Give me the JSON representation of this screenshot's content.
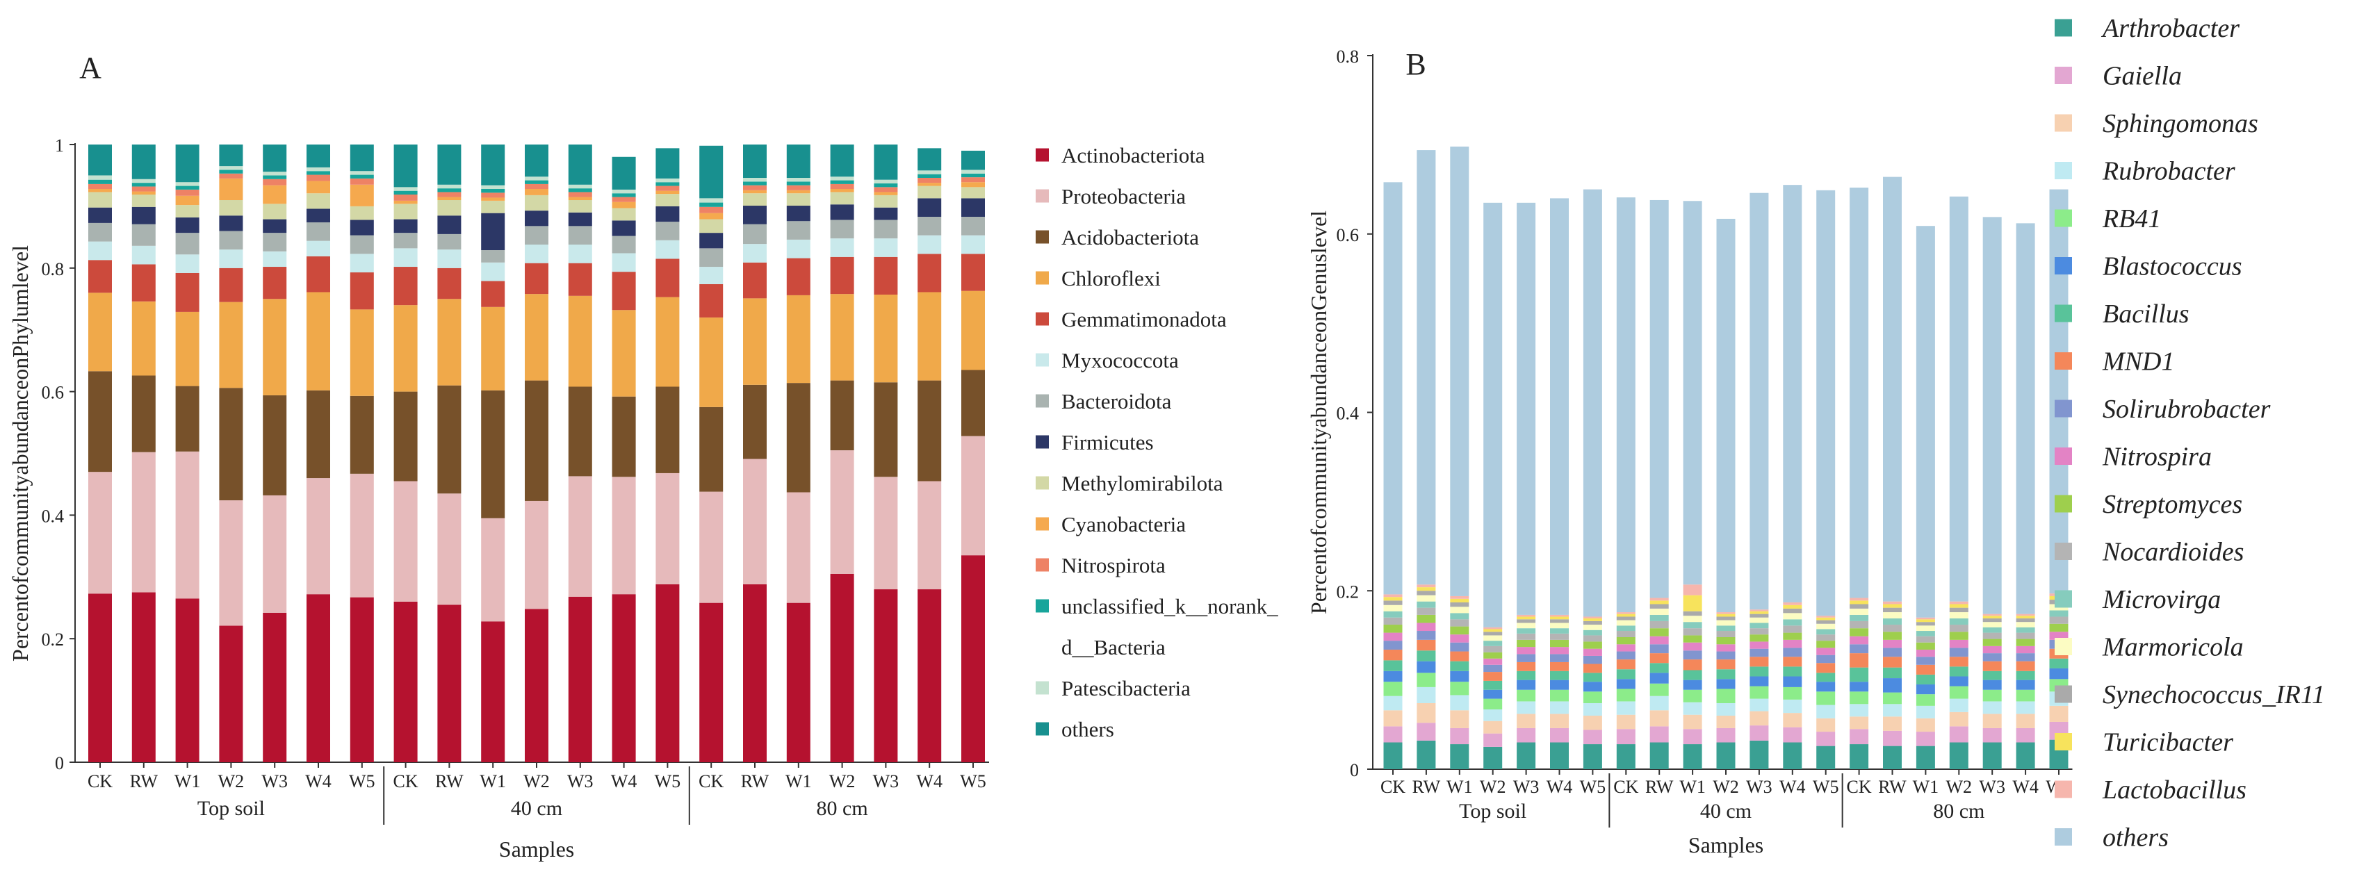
{
  "chart_data": [
    {
      "type": "bar",
      "stacked": true,
      "panel": "A",
      "xlabel": "Samples",
      "ylabel": "PercentofcommunityabundanceonPhylumlevel",
      "ylim": [
        0,
        1
      ],
      "yticks": [
        "0",
        "0.2",
        "0.4",
        "0.6",
        "0.8",
        "1"
      ],
      "categories": [
        "CK",
        "RW",
        "W1",
        "W2",
        "W3",
        "W4",
        "W5",
        "CK",
        "RW",
        "W1",
        "W2",
        "W3",
        "W4",
        "W5",
        "CK",
        "RW",
        "W1",
        "W2",
        "W3",
        "W4",
        "W5"
      ],
      "groups": [
        {
          "label": "Top soil",
          "count": 7
        },
        {
          "label": "40 cm",
          "count": 7
        },
        {
          "label": "80 cm",
          "count": 7
        }
      ],
      "series": [
        {
          "name": "Actinobacteriota",
          "color": "#b5122f",
          "values": [
            0.273,
            0.275,
            0.265,
            0.221,
            0.242,
            0.272,
            0.267,
            0.26,
            0.255,
            0.228,
            0.248,
            0.268,
            0.272,
            0.288,
            0.258,
            0.288,
            0.258,
            0.305,
            0.28,
            0.28,
            0.335
          ]
        },
        {
          "name": "Proteobacteria",
          "color": "#e6babb",
          "values": [
            0.197,
            0.227,
            0.238,
            0.203,
            0.19,
            0.188,
            0.2,
            0.195,
            0.18,
            0.167,
            0.175,
            0.195,
            0.19,
            0.18,
            0.18,
            0.203,
            0.179,
            0.2,
            0.182,
            0.175,
            0.193
          ]
        },
        {
          "name": "Acidobacteriota",
          "color": "#77512a",
          "values": [
            0.163,
            0.124,
            0.106,
            0.182,
            0.162,
            0.142,
            0.126,
            0.145,
            0.175,
            0.207,
            0.195,
            0.145,
            0.13,
            0.14,
            0.137,
            0.12,
            0.177,
            0.113,
            0.153,
            0.163,
            0.107
          ]
        },
        {
          "name": "Chloroflexi",
          "color": "#f0a94a",
          "values": [
            0.127,
            0.12,
            0.12,
            0.139,
            0.156,
            0.159,
            0.14,
            0.14,
            0.14,
            0.135,
            0.14,
            0.147,
            0.14,
            0.145,
            0.145,
            0.14,
            0.142,
            0.14,
            0.142,
            0.143,
            0.128
          ]
        },
        {
          "name": "Gemmatimonadota",
          "color": "#cc4a3c",
          "values": [
            0.053,
            0.06,
            0.063,
            0.055,
            0.052,
            0.058,
            0.06,
            0.062,
            0.05,
            0.042,
            0.05,
            0.053,
            0.062,
            0.062,
            0.054,
            0.058,
            0.06,
            0.06,
            0.061,
            0.062,
            0.06
          ]
        },
        {
          "name": "Myxococcota",
          "color": "#c9e9eb",
          "values": [
            0.03,
            0.03,
            0.03,
            0.03,
            0.025,
            0.025,
            0.03,
            0.03,
            0.03,
            0.03,
            0.03,
            0.03,
            0.03,
            0.03,
            0.028,
            0.03,
            0.03,
            0.03,
            0.03,
            0.03,
            0.03
          ]
        },
        {
          "name": "Bacteroidota",
          "color": "#a9b3b0",
          "values": [
            0.03,
            0.035,
            0.035,
            0.03,
            0.03,
            0.03,
            0.03,
            0.025,
            0.025,
            0.02,
            0.03,
            0.03,
            0.028,
            0.03,
            0.03,
            0.032,
            0.03,
            0.03,
            0.03,
            0.03,
            0.03
          ]
        },
        {
          "name": "Firmicutes",
          "color": "#2c3766",
          "values": [
            0.025,
            0.028,
            0.025,
            0.025,
            0.022,
            0.022,
            0.025,
            0.022,
            0.03,
            0.06,
            0.025,
            0.022,
            0.025,
            0.025,
            0.025,
            0.03,
            0.025,
            0.025,
            0.02,
            0.03,
            0.03
          ]
        },
        {
          "name": "Methylomirabilota",
          "color": "#d3d8a6",
          "values": [
            0.025,
            0.02,
            0.02,
            0.025,
            0.025,
            0.025,
            0.022,
            0.025,
            0.025,
            0.02,
            0.025,
            0.02,
            0.02,
            0.02,
            0.022,
            0.02,
            0.02,
            0.02,
            0.02,
            0.02,
            0.018
          ]
        },
        {
          "name": "Cyanobacteria",
          "color": "#f5a94e",
          "values": [
            0.005,
            0.005,
            0.015,
            0.035,
            0.03,
            0.02,
            0.035,
            0.005,
            0.005,
            0.005,
            0.01,
            0.005,
            0.01,
            0.005,
            0.01,
            0.005,
            0.005,
            0.005,
            0.005,
            0.005,
            0.008
          ]
        },
        {
          "name": "Nitrospirota",
          "color": "#ee8265",
          "values": [
            0.008,
            0.008,
            0.01,
            0.008,
            0.01,
            0.01,
            0.01,
            0.01,
            0.008,
            0.008,
            0.008,
            0.008,
            0.008,
            0.008,
            0.01,
            0.008,
            0.008,
            0.008,
            0.008,
            0.008,
            0.008
          ]
        },
        {
          "name": "unclassified_k__norank_d__Bacteria",
          "color": "#18a59b",
          "values": [
            0.007,
            0.006,
            0.006,
            0.006,
            0.006,
            0.006,
            0.006,
            0.006,
            0.006,
            0.006,
            0.006,
            0.006,
            0.006,
            0.006,
            0.007,
            0.006,
            0.006,
            0.006,
            0.006,
            0.006,
            0.006
          ]
        },
        {
          "name": "Patescibacteria",
          "color": "#c4e2d0",
          "values": [
            0.007,
            0.006,
            0.006,
            0.006,
            0.006,
            0.006,
            0.006,
            0.006,
            0.006,
            0.006,
            0.006,
            0.006,
            0.006,
            0.006,
            0.007,
            0.006,
            0.006,
            0.006,
            0.006,
            0.006,
            0.006
          ]
        },
        {
          "name": "others",
          "color": "#18908f",
          "values": [
            0.05,
            0.056,
            0.061,
            0.035,
            0.044,
            0.037,
            0.043,
            0.069,
            0.065,
            0.066,
            0.052,
            0.065,
            0.053,
            0.049,
            0.085,
            0.054,
            0.054,
            0.052,
            0.057,
            0.036,
            0.031
          ]
        }
      ]
    },
    {
      "type": "bar",
      "stacked": true,
      "panel": "B",
      "xlabel": "Samples",
      "ylabel": "PercentofcommunityabundanceonGenuslevel",
      "ylim": [
        0,
        0.8
      ],
      "yticks": [
        "0",
        "0.2",
        "0.4",
        "0.6",
        "0.8"
      ],
      "categories": [
        "CK",
        "RW",
        "W1",
        "W2",
        "W3",
        "W4",
        "W5",
        "CK",
        "RW",
        "W1",
        "W2",
        "W3",
        "W4",
        "W5",
        "CK",
        "RW",
        "W1",
        "W2",
        "W3",
        "W4",
        "W5"
      ],
      "groups": [
        {
          "label": "Top soil",
          "count": 7
        },
        {
          "label": "40 cm",
          "count": 7
        },
        {
          "label": "80 cm",
          "count": 7
        }
      ],
      "series": [
        {
          "name": "Arthrobacter",
          "color": "#3aa093",
          "values": [
            0.03,
            0.032,
            0.028,
            0.025,
            0.03,
            0.03,
            0.028,
            0.028,
            0.03,
            0.028,
            0.03,
            0.032,
            0.03,
            0.026,
            0.028,
            0.026,
            0.026,
            0.03,
            0.03,
            0.03,
            0.033
          ]
        },
        {
          "name": "Gaiella",
          "color": "#e3a7d2",
          "values": [
            0.018,
            0.02,
            0.018,
            0.015,
            0.016,
            0.016,
            0.016,
            0.017,
            0.018,
            0.017,
            0.016,
            0.017,
            0.017,
            0.016,
            0.017,
            0.017,
            0.016,
            0.018,
            0.016,
            0.016,
            0.02
          ]
        },
        {
          "name": "Sphingomonas",
          "color": "#f7d1b1",
          "values": [
            0.018,
            0.022,
            0.02,
            0.014,
            0.016,
            0.016,
            0.016,
            0.016,
            0.018,
            0.016,
            0.014,
            0.016,
            0.016,
            0.015,
            0.014,
            0.016,
            0.015,
            0.016,
            0.016,
            0.016,
            0.018
          ]
        },
        {
          "name": "Rubrobacter",
          "color": "#bfeaf2",
          "values": [
            0.016,
            0.018,
            0.017,
            0.013,
            0.014,
            0.014,
            0.014,
            0.015,
            0.016,
            0.014,
            0.014,
            0.014,
            0.015,
            0.015,
            0.014,
            0.014,
            0.014,
            0.015,
            0.014,
            0.014,
            0.016
          ]
        },
        {
          "name": "RB41",
          "color": "#8cec8a",
          "values": [
            0.016,
            0.016,
            0.015,
            0.012,
            0.013,
            0.013,
            0.013,
            0.014,
            0.014,
            0.014,
            0.016,
            0.014,
            0.014,
            0.015,
            0.014,
            0.013,
            0.013,
            0.014,
            0.013,
            0.013,
            0.014
          ]
        },
        {
          "name": "Blastococcus",
          "color": "#4c8be0",
          "values": [
            0.012,
            0.013,
            0.012,
            0.01,
            0.011,
            0.011,
            0.011,
            0.011,
            0.012,
            0.011,
            0.011,
            0.011,
            0.012,
            0.011,
            0.011,
            0.016,
            0.011,
            0.011,
            0.011,
            0.011,
            0.012
          ]
        },
        {
          "name": "Bacillus",
          "color": "#59c39a",
          "values": [
            0.012,
            0.012,
            0.011,
            0.01,
            0.01,
            0.01,
            0.01,
            0.011,
            0.011,
            0.011,
            0.011,
            0.011,
            0.011,
            0.01,
            0.016,
            0.012,
            0.011,
            0.011,
            0.01,
            0.01,
            0.011
          ]
        },
        {
          "name": "MND1",
          "color": "#f4875a",
          "values": [
            0.012,
            0.012,
            0.011,
            0.01,
            0.01,
            0.01,
            0.01,
            0.011,
            0.011,
            0.012,
            0.011,
            0.011,
            0.011,
            0.011,
            0.016,
            0.012,
            0.011,
            0.011,
            0.011,
            0.011,
            0.011
          ]
        },
        {
          "name": "Solirubrobacter",
          "color": "#8195cf",
          "values": [
            0.01,
            0.01,
            0.01,
            0.008,
            0.009,
            0.009,
            0.009,
            0.009,
            0.01,
            0.01,
            0.009,
            0.009,
            0.01,
            0.009,
            0.01,
            0.01,
            0.009,
            0.01,
            0.009,
            0.009,
            0.01
          ]
        },
        {
          "name": "Nitrospira",
          "color": "#e383c5",
          "values": [
            0.009,
            0.009,
            0.009,
            0.007,
            0.008,
            0.008,
            0.008,
            0.008,
            0.009,
            0.009,
            0.008,
            0.008,
            0.009,
            0.008,
            0.009,
            0.009,
            0.008,
            0.009,
            0.008,
            0.008,
            0.009
          ]
        },
        {
          "name": "Streptomyces",
          "color": "#9ecf4d",
          "values": [
            0.009,
            0.009,
            0.009,
            0.007,
            0.008,
            0.008,
            0.008,
            0.008,
            0.009,
            0.008,
            0.008,
            0.008,
            0.008,
            0.008,
            0.009,
            0.009,
            0.008,
            0.009,
            0.008,
            0.008,
            0.009
          ]
        },
        {
          "name": "Nocardioides",
          "color": "#b4b4b4",
          "values": [
            0.008,
            0.008,
            0.008,
            0.007,
            0.007,
            0.007,
            0.007,
            0.007,
            0.008,
            0.008,
            0.007,
            0.007,
            0.008,
            0.007,
            0.008,
            0.008,
            0.007,
            0.008,
            0.007,
            0.007,
            0.008
          ]
        },
        {
          "name": "Microvirga",
          "color": "#86ccbd",
          "values": [
            0.007,
            0.007,
            0.007,
            0.006,
            0.006,
            0.006,
            0.006,
            0.006,
            0.007,
            0.007,
            0.006,
            0.006,
            0.007,
            0.006,
            0.007,
            0.007,
            0.006,
            0.007,
            0.006,
            0.006,
            0.007
          ]
        },
        {
          "name": "Marmoricola",
          "color": "#fcfcc3",
          "values": [
            0.007,
            0.007,
            0.007,
            0.006,
            0.006,
            0.006,
            0.006,
            0.006,
            0.007,
            0.007,
            0.006,
            0.006,
            0.007,
            0.006,
            0.007,
            0.007,
            0.006,
            0.007,
            0.006,
            0.006,
            0.007
          ]
        },
        {
          "name": "Synechococcus_IR11",
          "color": "#aaaaaa",
          "values": [
            0.005,
            0.005,
            0.005,
            0.004,
            0.004,
            0.004,
            0.004,
            0.004,
            0.005,
            0.005,
            0.004,
            0.004,
            0.005,
            0.004,
            0.005,
            0.005,
            0.004,
            0.005,
            0.004,
            0.004,
            0.005
          ]
        },
        {
          "name": "Turicibacter",
          "color": "#f7e35c",
          "values": [
            0.004,
            0.004,
            0.004,
            0.003,
            0.003,
            0.003,
            0.003,
            0.003,
            0.004,
            0.018,
            0.003,
            0.003,
            0.004,
            0.003,
            0.004,
            0.004,
            0.003,
            0.004,
            0.003,
            0.003,
            0.004
          ]
        },
        {
          "name": "Lactobacillus",
          "color": "#f6b6ad",
          "values": [
            0.003,
            0.003,
            0.003,
            0.002,
            0.002,
            0.002,
            0.002,
            0.002,
            0.003,
            0.012,
            0.002,
            0.002,
            0.003,
            0.002,
            0.003,
            0.003,
            0.002,
            0.003,
            0.002,
            0.002,
            0.003
          ]
        },
        {
          "name": "others",
          "color": "#aeccdf",
          "values": [
            0.462,
            0.487,
            0.504,
            0.476,
            0.462,
            0.467,
            0.479,
            0.465,
            0.446,
            0.43,
            0.441,
            0.467,
            0.468,
            0.477,
            0.46,
            0.476,
            0.439,
            0.454,
            0.445,
            0.438,
            0.453
          ]
        }
      ]
    }
  ]
}
